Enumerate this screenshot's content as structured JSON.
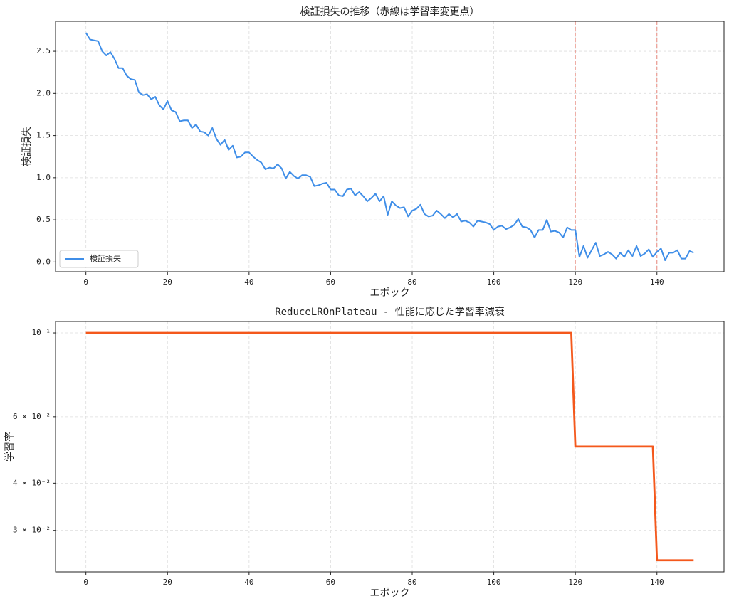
{
  "chart_data": [
    {
      "type": "line",
      "title": "検証損失の推移（赤線は学習率変更点）",
      "x_label": "エポック",
      "y_label": "検証損失",
      "x": [
        0,
        1,
        2,
        3,
        4,
        5,
        6,
        7,
        8,
        9,
        10,
        11,
        12,
        13,
        14,
        15,
        16,
        17,
        18,
        19,
        20,
        21,
        22,
        23,
        24,
        25,
        26,
        27,
        28,
        29,
        30,
        31,
        32,
        33,
        34,
        35,
        36,
        37,
        38,
        39,
        40,
        41,
        42,
        43,
        44,
        45,
        46,
        47,
        48,
        49,
        50,
        51,
        52,
        53,
        54,
        55,
        56,
        57,
        58,
        59,
        60,
        61,
        62,
        63,
        64,
        65,
        66,
        67,
        68,
        69,
        70,
        71,
        72,
        73,
        74,
        75,
        76,
        77,
        78,
        79,
        80,
        81,
        82,
        83,
        84,
        85,
        86,
        87,
        88,
        89,
        90,
        91,
        92,
        93,
        94,
        95,
        96,
        97,
        98,
        99,
        100,
        101,
        102,
        103,
        104,
        105,
        106,
        107,
        108,
        109,
        110,
        111,
        112,
        113,
        114,
        115,
        116,
        117,
        118,
        119,
        120,
        121,
        122,
        123,
        124,
        125,
        126,
        127,
        128,
        129,
        130,
        131,
        132,
        133,
        134,
        135,
        136,
        137,
        138,
        139,
        140,
        141,
        142,
        143,
        144,
        145,
        146,
        147,
        148,
        149
      ],
      "series": [
        {
          "name": "検証損失",
          "color": "#3f8ee8",
          "values": [
            2.72,
            2.64,
            2.63,
            2.62,
            2.5,
            2.45,
            2.49,
            2.41,
            2.3,
            2.3,
            2.21,
            2.17,
            2.16,
            2.01,
            1.98,
            1.99,
            1.93,
            1.96,
            1.86,
            1.81,
            1.91,
            1.8,
            1.78,
            1.67,
            1.68,
            1.68,
            1.59,
            1.63,
            1.55,
            1.54,
            1.5,
            1.59,
            1.46,
            1.39,
            1.45,
            1.33,
            1.38,
            1.24,
            1.25,
            1.3,
            1.3,
            1.25,
            1.21,
            1.18,
            1.1,
            1.12,
            1.11,
            1.16,
            1.11,
            0.99,
            1.07,
            1.02,
            0.99,
            1.03,
            1.03,
            1.01,
            0.9,
            0.91,
            0.93,
            0.94,
            0.86,
            0.86,
            0.79,
            0.78,
            0.86,
            0.87,
            0.79,
            0.83,
            0.78,
            0.72,
            0.76,
            0.81,
            0.72,
            0.78,
            0.56,
            0.72,
            0.67,
            0.64,
            0.65,
            0.54,
            0.61,
            0.63,
            0.68,
            0.57,
            0.54,
            0.55,
            0.61,
            0.57,
            0.52,
            0.57,
            0.53,
            0.57,
            0.48,
            0.49,
            0.47,
            0.42,
            0.49,
            0.48,
            0.47,
            0.45,
            0.38,
            0.42,
            0.43,
            0.39,
            0.41,
            0.44,
            0.51,
            0.42,
            0.41,
            0.38,
            0.29,
            0.38,
            0.38,
            0.5,
            0.36,
            0.37,
            0.35,
            0.29,
            0.41,
            0.38,
            0.38,
            0.06,
            0.19,
            0.05,
            0.14,
            0.23,
            0.07,
            0.09,
            0.12,
            0.09,
            0.04,
            0.11,
            0.06,
            0.14,
            0.07,
            0.19,
            0.07,
            0.1,
            0.15,
            0.06,
            0.12,
            0.16,
            0.02,
            0.11,
            0.11,
            0.14,
            0.04,
            0.04,
            0.13,
            0.11
          ]
        }
      ],
      "vlines": [
        120,
        140
      ],
      "vline_color": "#e8897d",
      "xlim": [
        -7.45,
        156.45
      ],
      "ylim": [
        -0.115,
        2.855
      ],
      "xticks": [
        0,
        20,
        40,
        60,
        80,
        100,
        120,
        140
      ],
      "yticks": [
        {
          "value": 0,
          "label": "0.0"
        },
        0.5,
        {
          "value": 1,
          "label": "1.0"
        },
        1.5,
        {
          "value": 2,
          "label": "2.0"
        },
        2.5
      ],
      "grid": true,
      "legend": "lower left"
    },
    {
      "type": "line",
      "title": "ReduceLROnPlateau - 性能に応じた学習率減衰",
      "x_label": "エポック",
      "y_label": "学習率",
      "x": [
        0,
        1,
        2,
        3,
        4,
        5,
        6,
        7,
        8,
        9,
        10,
        11,
        12,
        13,
        14,
        15,
        16,
        17,
        18,
        19,
        20,
        21,
        22,
        23,
        24,
        25,
        26,
        27,
        28,
        29,
        30,
        31,
        32,
        33,
        34,
        35,
        36,
        37,
        38,
        39,
        40,
        41,
        42,
        43,
        44,
        45,
        46,
        47,
        48,
        49,
        50,
        51,
        52,
        53,
        54,
        55,
        56,
        57,
        58,
        59,
        60,
        61,
        62,
        63,
        64,
        65,
        66,
        67,
        68,
        69,
        70,
        71,
        72,
        73,
        74,
        75,
        76,
        77,
        78,
        79,
        80,
        81,
        82,
        83,
        84,
        85,
        86,
        87,
        88,
        89,
        90,
        91,
        92,
        93,
        94,
        95,
        96,
        97,
        98,
        99,
        100,
        101,
        102,
        103,
        104,
        105,
        106,
        107,
        108,
        109,
        110,
        111,
        112,
        113,
        114,
        115,
        116,
        117,
        118,
        119,
        120,
        121,
        122,
        123,
        124,
        125,
        126,
        127,
        128,
        129,
        130,
        131,
        132,
        133,
        134,
        135,
        136,
        137,
        138,
        139,
        140,
        141,
        142,
        143,
        144,
        145,
        146,
        147,
        148,
        149
      ],
      "series": [
        {
          "color": "#f4581c",
          "values": [
            0.1,
            0.1,
            0.1,
            0.1,
            0.1,
            0.1,
            0.1,
            0.1,
            0.1,
            0.1,
            0.1,
            0.1,
            0.1,
            0.1,
            0.1,
            0.1,
            0.1,
            0.1,
            0.1,
            0.1,
            0.1,
            0.1,
            0.1,
            0.1,
            0.1,
            0.1,
            0.1,
            0.1,
            0.1,
            0.1,
            0.1,
            0.1,
            0.1,
            0.1,
            0.1,
            0.1,
            0.1,
            0.1,
            0.1,
            0.1,
            0.1,
            0.1,
            0.1,
            0.1,
            0.1,
            0.1,
            0.1,
            0.1,
            0.1,
            0.1,
            0.1,
            0.1,
            0.1,
            0.1,
            0.1,
            0.1,
            0.1,
            0.1,
            0.1,
            0.1,
            0.1,
            0.1,
            0.1,
            0.1,
            0.1,
            0.1,
            0.1,
            0.1,
            0.1,
            0.1,
            0.1,
            0.1,
            0.1,
            0.1,
            0.1,
            0.1,
            0.1,
            0.1,
            0.1,
            0.1,
            0.1,
            0.1,
            0.1,
            0.1,
            0.1,
            0.1,
            0.1,
            0.1,
            0.1,
            0.1,
            0.1,
            0.1,
            0.1,
            0.1,
            0.1,
            0.1,
            0.1,
            0.1,
            0.1,
            0.1,
            0.1,
            0.1,
            0.1,
            0.1,
            0.1,
            0.1,
            0.1,
            0.1,
            0.1,
            0.1,
            0.1,
            0.1,
            0.1,
            0.1,
            0.1,
            0.1,
            0.1,
            0.1,
            0.1,
            0.1,
            0.05,
            0.05,
            0.05,
            0.05,
            0.05,
            0.05,
            0.05,
            0.05,
            0.05,
            0.05,
            0.05,
            0.05,
            0.05,
            0.05,
            0.05,
            0.05,
            0.05,
            0.05,
            0.05,
            0.05,
            0.025,
            0.025,
            0.025,
            0.025,
            0.025,
            0.025,
            0.025,
            0.025,
            0.025,
            0.025
          ]
        }
      ],
      "xlim": [
        -7.45,
        156.45
      ],
      "ylim": [
        0.0233,
        0.1072
      ],
      "yscale": "log",
      "xticks": [
        0,
        20,
        40,
        60,
        80,
        100,
        120,
        140
      ],
      "yticks": [
        {
          "value": 0.1,
          "label": "10⁻¹"
        },
        {
          "value": 0.06,
          "label": "6 × 10⁻²"
        },
        {
          "value": 0.04,
          "label": "4 × 10⁻²"
        },
        {
          "value": 0.03,
          "label": "3 × 10⁻²"
        }
      ],
      "grid": true
    }
  ]
}
